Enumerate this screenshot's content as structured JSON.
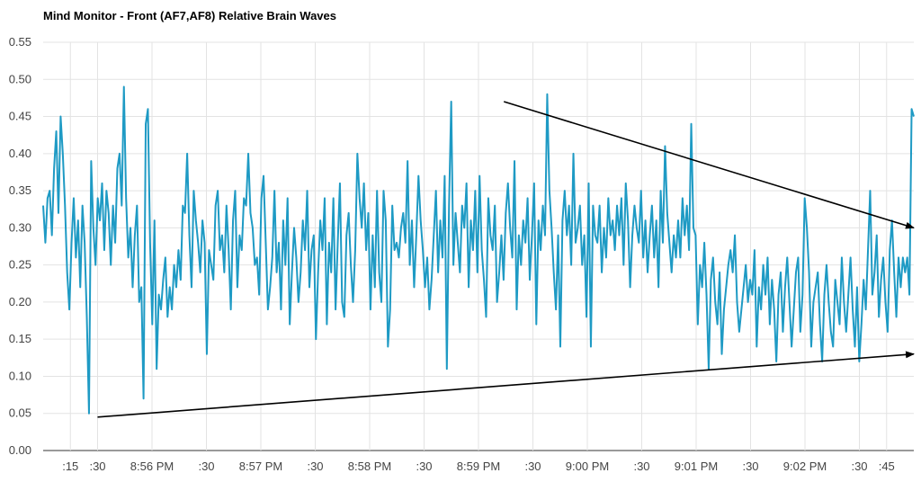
{
  "chart_data": {
    "type": "line",
    "title": "Mind Monitor - Front (AF7,AF8) Relative Brain Waves",
    "xlabel": "",
    "ylabel": "",
    "ylim": [
      0,
      0.55
    ],
    "y_ticks": [
      "0.00",
      "0.05",
      "0.10",
      "0.15",
      "0.20",
      "0.25",
      "0.30",
      "0.35",
      "0.40",
      "0.45",
      "0.50",
      "0.55"
    ],
    "x_range_seconds": [
      0,
      480
    ],
    "x_ticks": [
      {
        "t": 15,
        "label": ":15"
      },
      {
        "t": 30,
        "label": ":30"
      },
      {
        "t": 60,
        "label": "8:56 PM"
      },
      {
        "t": 90,
        "label": ":30"
      },
      {
        "t": 120,
        "label": "8:57 PM"
      },
      {
        "t": 150,
        "label": ":30"
      },
      {
        "t": 180,
        "label": "8:58 PM"
      },
      {
        "t": 210,
        "label": ":30"
      },
      {
        "t": 240,
        "label": "8:59 PM"
      },
      {
        "t": 270,
        "label": ":30"
      },
      {
        "t": 300,
        "label": "9:00 PM"
      },
      {
        "t": 330,
        "label": ":30"
      },
      {
        "t": 360,
        "label": "9:01 PM"
      },
      {
        "t": 390,
        "label": ":30"
      },
      {
        "t": 420,
        "label": "9:02 PM"
      },
      {
        "t": 450,
        "label": ":30"
      },
      {
        "t": 465,
        "label": ":45"
      }
    ],
    "grid": true,
    "colors": {
      "series": "#1e9ac4",
      "grid": "#e3e3e3",
      "annotation": "#000000"
    },
    "series": [
      {
        "name": "",
        "values": [
          0.33,
          0.28,
          0.34,
          0.35,
          0.29,
          0.38,
          0.43,
          0.32,
          0.45,
          0.4,
          0.33,
          0.24,
          0.19,
          0.28,
          0.34,
          0.26,
          0.31,
          0.22,
          0.33,
          0.28,
          0.18,
          0.05,
          0.39,
          0.3,
          0.25,
          0.34,
          0.31,
          0.36,
          0.27,
          0.35,
          0.32,
          0.25,
          0.33,
          0.28,
          0.38,
          0.4,
          0.33,
          0.49,
          0.34,
          0.26,
          0.3,
          0.22,
          0.29,
          0.33,
          0.2,
          0.22,
          0.07,
          0.44,
          0.46,
          0.28,
          0.17,
          0.31,
          0.11,
          0.21,
          0.19,
          0.23,
          0.26,
          0.18,
          0.22,
          0.19,
          0.25,
          0.22,
          0.27,
          0.23,
          0.33,
          0.32,
          0.4,
          0.29,
          0.22,
          0.35,
          0.31,
          0.28,
          0.24,
          0.31,
          0.28,
          0.13,
          0.27,
          0.25,
          0.23,
          0.33,
          0.35,
          0.27,
          0.29,
          0.24,
          0.33,
          0.27,
          0.19,
          0.31,
          0.35,
          0.22,
          0.29,
          0.27,
          0.34,
          0.33,
          0.4,
          0.32,
          0.3,
          0.25,
          0.26,
          0.21,
          0.34,
          0.37,
          0.28,
          0.19,
          0.22,
          0.26,
          0.35,
          0.24,
          0.28,
          0.19,
          0.31,
          0.25,
          0.34,
          0.17,
          0.24,
          0.3,
          0.26,
          0.2,
          0.24,
          0.31,
          0.27,
          0.35,
          0.22,
          0.27,
          0.29,
          0.15,
          0.24,
          0.31,
          0.27,
          0.34,
          0.17,
          0.28,
          0.24,
          0.34,
          0.19,
          0.28,
          0.36,
          0.2,
          0.18,
          0.29,
          0.32,
          0.25,
          0.2,
          0.27,
          0.4,
          0.34,
          0.3,
          0.36,
          0.27,
          0.32,
          0.19,
          0.29,
          0.22,
          0.35,
          0.24,
          0.2,
          0.35,
          0.31,
          0.14,
          0.19,
          0.33,
          0.27,
          0.28,
          0.26,
          0.3,
          0.32,
          0.28,
          0.39,
          0.25,
          0.31,
          0.22,
          0.29,
          0.37,
          0.31,
          0.27,
          0.22,
          0.26,
          0.19,
          0.23,
          0.29,
          0.35,
          0.24,
          0.31,
          0.26,
          0.37,
          0.11,
          0.33,
          0.47,
          0.25,
          0.32,
          0.28,
          0.24,
          0.33,
          0.3,
          0.36,
          0.22,
          0.31,
          0.27,
          0.35,
          0.24,
          0.37,
          0.27,
          0.23,
          0.18,
          0.34,
          0.29,
          0.27,
          0.33,
          0.2,
          0.24,
          0.29,
          0.23,
          0.32,
          0.36,
          0.3,
          0.26,
          0.39,
          0.19,
          0.29,
          0.25,
          0.31,
          0.28,
          0.34,
          0.23,
          0.29,
          0.36,
          0.17,
          0.31,
          0.27,
          0.33,
          0.29,
          0.48,
          0.35,
          0.3,
          0.24,
          0.19,
          0.29,
          0.14,
          0.31,
          0.35,
          0.29,
          0.33,
          0.25,
          0.4,
          0.28,
          0.3,
          0.33,
          0.25,
          0.29,
          0.18,
          0.36,
          0.14,
          0.33,
          0.29,
          0.28,
          0.33,
          0.24,
          0.3,
          0.26,
          0.34,
          0.29,
          0.31,
          0.27,
          0.33,
          0.29,
          0.34,
          0.25,
          0.36,
          0.31,
          0.22,
          0.29,
          0.33,
          0.3,
          0.28,
          0.35,
          0.26,
          0.31,
          0.24,
          0.29,
          0.33,
          0.26,
          0.31,
          0.22,
          0.35,
          0.28,
          0.41,
          0.32,
          0.28,
          0.24,
          0.29,
          0.26,
          0.31,
          0.26,
          0.34,
          0.29,
          0.33,
          0.27,
          0.44,
          0.3,
          0.29,
          0.17,
          0.25,
          0.22,
          0.28,
          0.21,
          0.11,
          0.23,
          0.26,
          0.2,
          0.17,
          0.24,
          0.13,
          0.19,
          0.22,
          0.25,
          0.27,
          0.24,
          0.29,
          0.2,
          0.16,
          0.19,
          0.22,
          0.25,
          0.2,
          0.23,
          0.21,
          0.27,
          0.14,
          0.22,
          0.19,
          0.25,
          0.21,
          0.26,
          0.17,
          0.23,
          0.19,
          0.12,
          0.21,
          0.24,
          0.16,
          0.22,
          0.26,
          0.2,
          0.14,
          0.19,
          0.24,
          0.26,
          0.16,
          0.21,
          0.34,
          0.3,
          0.24,
          0.14,
          0.2,
          0.22,
          0.24,
          0.17,
          0.12,
          0.21,
          0.25,
          0.2,
          0.16,
          0.14,
          0.23,
          0.2,
          0.17,
          0.26,
          0.2,
          0.16,
          0.21,
          0.26,
          0.19,
          0.14,
          0.22,
          0.12,
          0.17,
          0.23,
          0.19,
          0.27,
          0.35,
          0.21,
          0.24,
          0.29,
          0.18,
          0.23,
          0.26,
          0.2,
          0.16,
          0.27,
          0.31,
          0.24,
          0.18,
          0.26,
          0.22,
          0.26,
          0.24,
          0.26,
          0.21,
          0.46,
          0.45
        ]
      }
    ],
    "annotations": [
      {
        "type": "arrow",
        "from": {
          "t": 254,
          "y": 0.47
        },
        "to": {
          "t": 480,
          "y": 0.3
        }
      },
      {
        "type": "arrow",
        "from": {
          "t": 30,
          "y": 0.045
        },
        "to": {
          "t": 480,
          "y": 0.13
        }
      }
    ]
  }
}
